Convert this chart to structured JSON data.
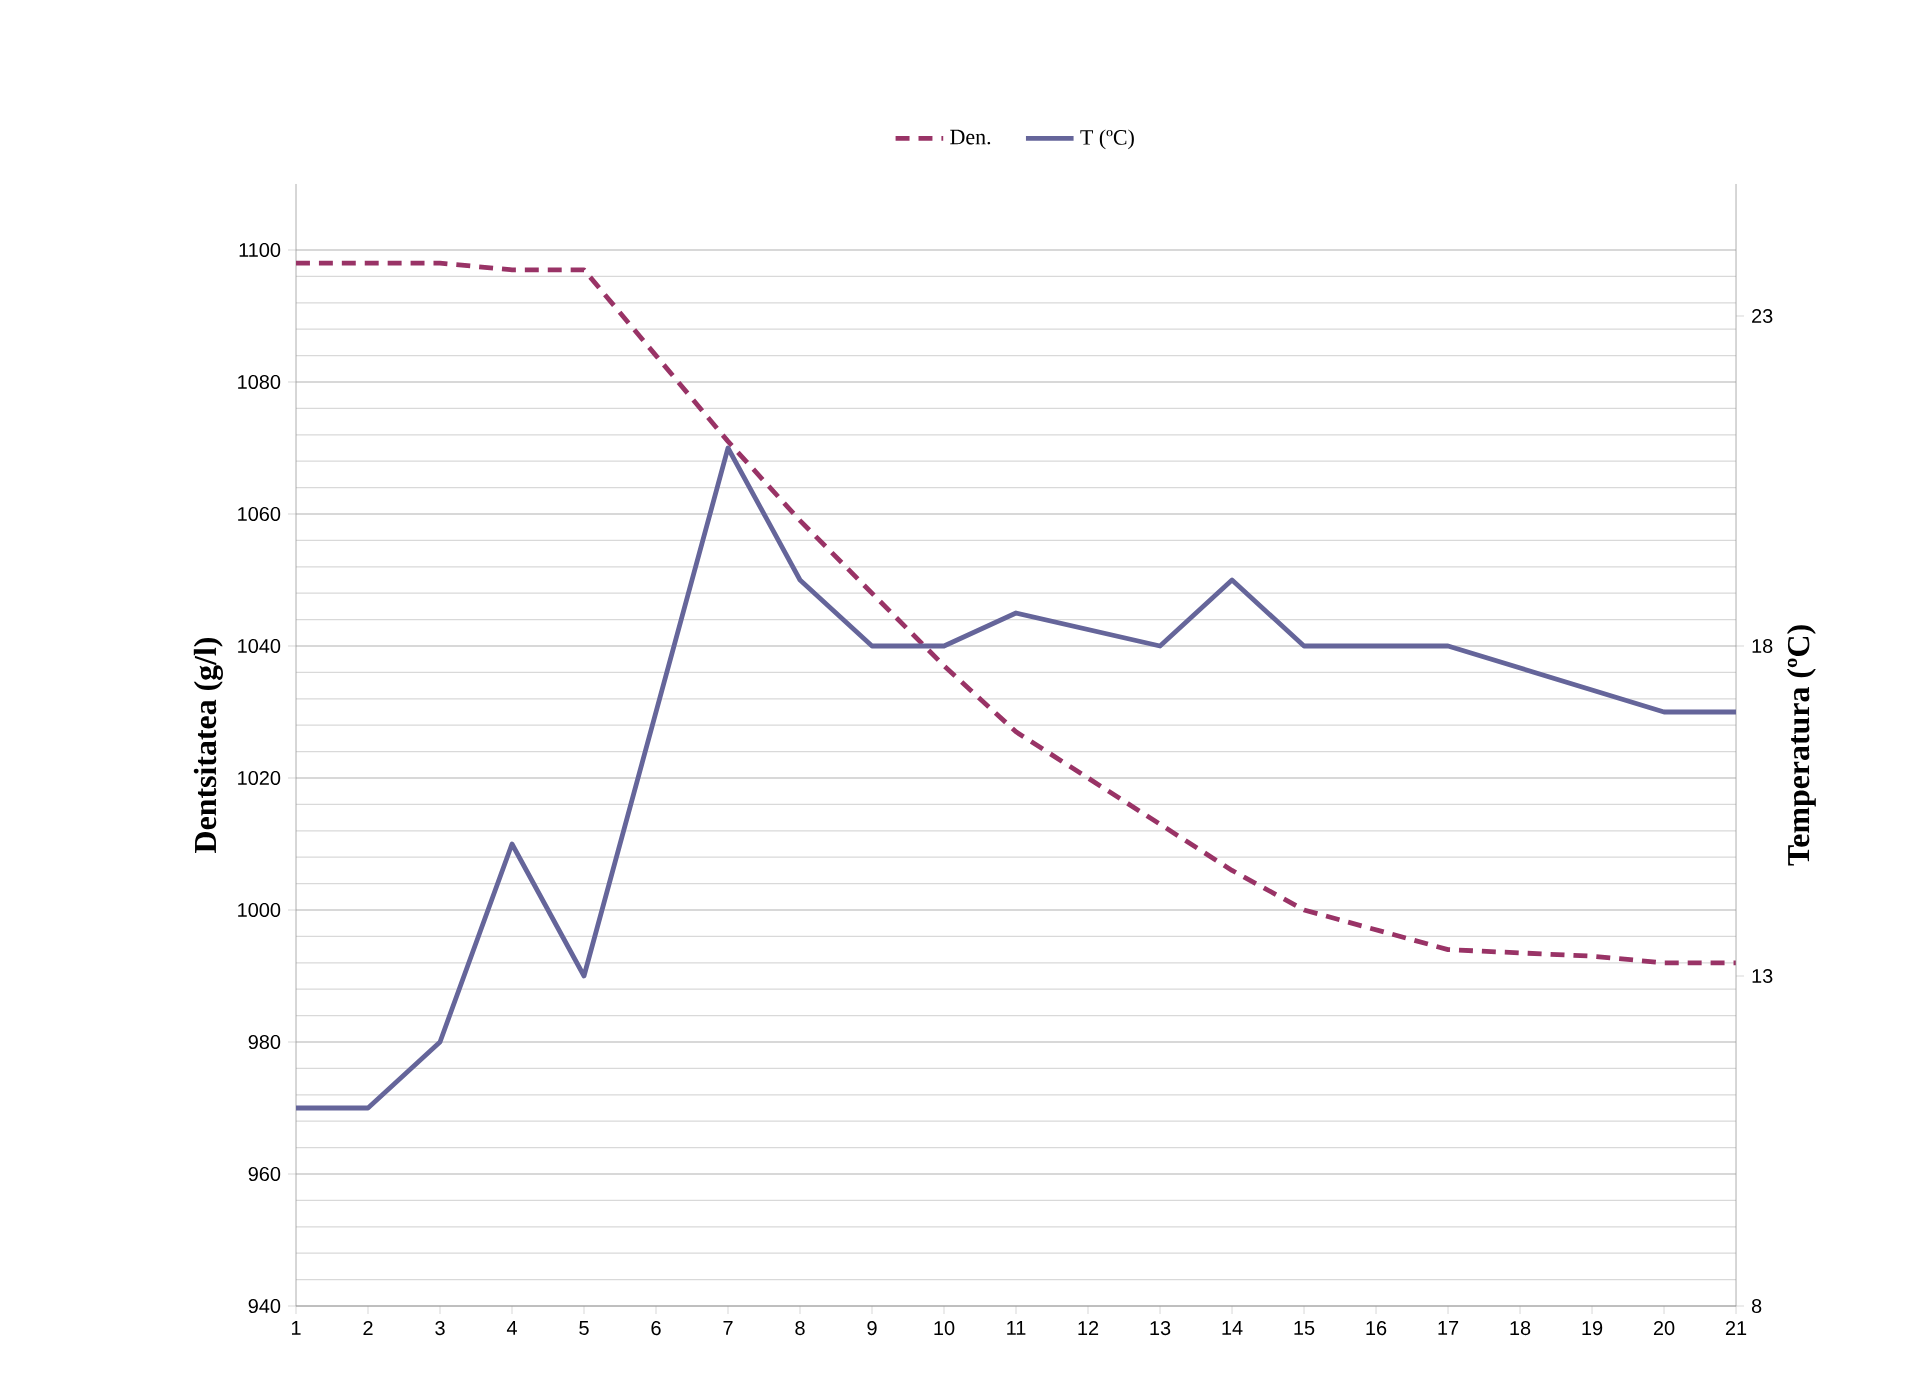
{
  "chart_data": {
    "type": "line",
    "xlabel": null,
    "ylabel": "Dentsitatea (g/l)",
    "y2label": "Temperatura (ºC)",
    "xlim": [
      1,
      21
    ],
    "xticks": [
      1,
      2,
      3,
      4,
      5,
      6,
      7,
      8,
      9,
      10,
      11,
      12,
      13,
      14,
      15,
      16,
      17,
      18,
      19,
      20,
      21
    ],
    "ylim": [
      940,
      1110
    ],
    "yticks": [
      940,
      960,
      980,
      1000,
      1020,
      1040,
      1060,
      1080,
      1100
    ],
    "y2lim": [
      8,
      25
    ],
    "y2ticks": [
      8,
      13,
      18,
      23
    ],
    "grid": "y",
    "legend": "top",
    "marker": "none",
    "series": [
      {
        "name": "Den.",
        "color": "#993366",
        "line_style": "dashed",
        "x": [
          1,
          2,
          3,
          4,
          5,
          6,
          7,
          8,
          9,
          10,
          11,
          12,
          13,
          14,
          15,
          16,
          17,
          18,
          19,
          20,
          21
        ],
        "values": [
          1098,
          1098,
          1098,
          1097,
          1097,
          1084,
          1071,
          1059,
          1048,
          1037,
          1027,
          1020,
          1013,
          1006,
          1000,
          997,
          994,
          993.5,
          993,
          992,
          992
        ]
      },
      {
        "name": "T (ºC)",
        "color": "#65659a",
        "line_style": "solid",
        "axis": "y2",
        "x": [
          1,
          2,
          3,
          4,
          5,
          7,
          8,
          9,
          10,
          11,
          13,
          14,
          15,
          17,
          20,
          21
        ],
        "values": [
          11,
          11,
          12,
          15,
          13,
          21,
          19,
          18,
          18,
          18.5,
          18,
          19,
          18,
          18,
          17,
          17
        ]
      }
    ]
  }
}
